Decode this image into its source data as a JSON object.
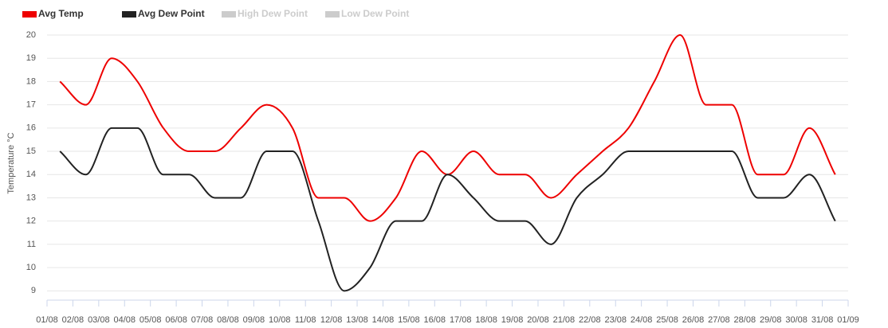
{
  "chart_data": {
    "type": "line",
    "y_axis_label": "Temperature °C",
    "x_axis_labels": [
      "01/08",
      "02/08",
      "03/08",
      "04/08",
      "05/08",
      "06/08",
      "07/08",
      "08/08",
      "09/08",
      "10/08",
      "11/08",
      "12/08",
      "13/08",
      "14/08",
      "15/08",
      "16/08",
      "17/08",
      "18/08",
      "19/08",
      "20/08",
      "21/08",
      "22/08",
      "23/08",
      "24/08",
      "25/08",
      "26/08",
      "27/08",
      "28/08",
      "29/08",
      "30/08",
      "31/08",
      "01/09"
    ],
    "series": [
      {
        "name": "Avg Temp",
        "color": "#ee0000",
        "values": [
          18,
          17,
          19,
          18,
          16,
          15,
          15,
          16,
          17,
          16,
          13,
          13,
          12,
          13,
          15,
          14,
          15,
          14,
          14,
          13,
          14,
          15,
          16,
          18,
          20,
          17,
          17,
          14,
          14,
          16,
          14
        ]
      },
      {
        "name": "Avg Dew Point",
        "color": "#222222",
        "values": [
          15,
          14,
          16,
          16,
          14,
          14,
          13,
          13,
          15,
          15,
          12,
          9,
          10,
          12,
          12,
          14,
          13,
          12,
          12,
          11,
          13,
          14,
          15,
          15,
          15,
          15,
          15,
          13,
          13,
          14,
          12
        ]
      },
      {
        "name": "High Dew Point",
        "color": "#cccccc",
        "hidden": true
      },
      {
        "name": "Low Dew Point",
        "color": "#cccccc",
        "hidden": true
      }
    ],
    "ylim": [
      8.6,
      20
    ],
    "yticks": [
      9,
      10,
      11,
      12,
      13,
      14,
      15,
      16,
      17,
      18,
      19,
      20
    ],
    "grid": true
  }
}
